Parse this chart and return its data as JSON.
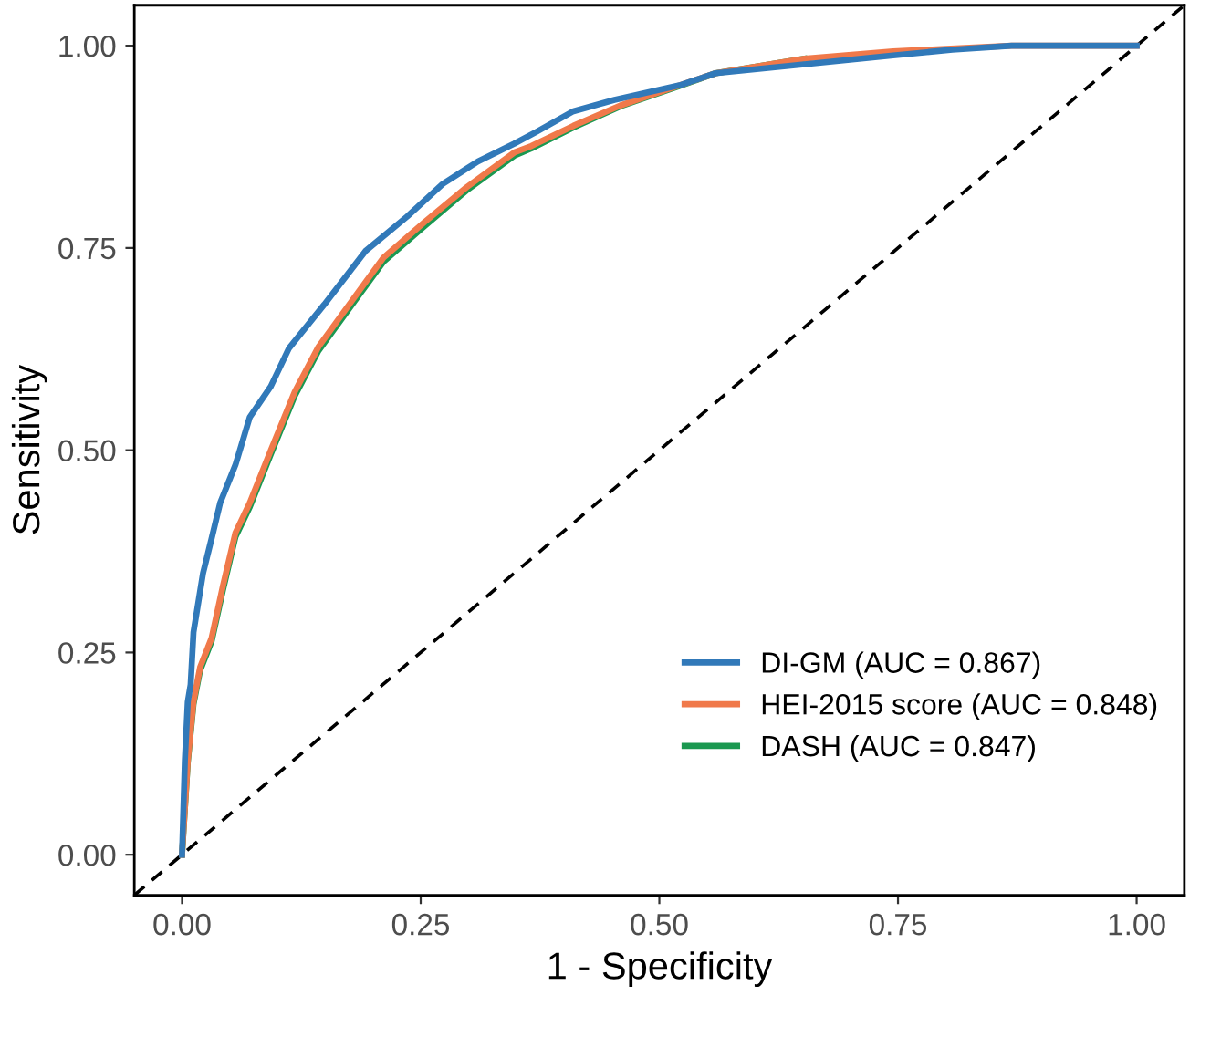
{
  "chart_data": {
    "type": "line",
    "xlabel": "1 - Specificity",
    "ylabel": "Sensitivity",
    "xlim": [
      -0.05,
      1.05
    ],
    "ylim": [
      -0.05,
      1.05
    ],
    "xticks": [
      {
        "value": 0,
        "label": "0.00"
      },
      {
        "value": 0.25,
        "label": "0.25"
      },
      {
        "value": 0.5,
        "label": "0.50"
      },
      {
        "value": 0.75,
        "label": "0.75"
      },
      {
        "value": 1,
        "label": "1.00"
      }
    ],
    "yticks": [
      {
        "value": 0,
        "label": "0.00"
      },
      {
        "value": 0.25,
        "label": "0.25"
      },
      {
        "value": 0.5,
        "label": "0.50"
      },
      {
        "value": 0.75,
        "label": "0.75"
      },
      {
        "value": 1,
        "label": "1.00"
      }
    ],
    "grid": false,
    "legend": "bottom right",
    "marker": "none",
    "series": [
      {
        "type": "line",
        "line_style": "dashed",
        "color": "#000000",
        "x": [
          -0.05,
          1.05
        ],
        "values": [
          -0.05,
          1.05
        ]
      },
      {
        "name": "DI-GM (AUC = 0.867)",
        "color": "#3179b9",
        "line_style": "solid",
        "x": [
          0,
          0.003,
          0.006,
          0.009,
          0.012,
          0.022,
          0.031,
          0.04,
          0.056,
          0.071,
          0.093,
          0.112,
          0.149,
          0.192,
          0.236,
          0.273,
          0.31,
          0.348,
          0.372,
          0.41,
          0.453,
          0.521,
          0.559,
          0.652,
          0.745,
          0.807,
          0.869,
          1
        ],
        "values": [
          0,
          0.117,
          0.189,
          0.21,
          0.275,
          0.348,
          0.391,
          0.435,
          0.482,
          0.541,
          0.579,
          0.626,
          0.68,
          0.746,
          0.789,
          0.829,
          0.857,
          0.879,
          0.894,
          0.919,
          0.933,
          0.951,
          0.966,
          0.977,
          0.988,
          0.995,
          1,
          1
        ]
      },
      {
        "name": "HEI-2015 score (AUC = 0.848)",
        "color": "#f0794a",
        "line_style": "solid",
        "x": [
          0,
          0.006,
          0.012,
          0.019,
          0.031,
          0.043,
          0.056,
          0.071,
          0.093,
          0.118,
          0.143,
          0.18,
          0.211,
          0.254,
          0.298,
          0.348,
          0.366,
          0.41,
          0.459,
          0.521,
          0.559,
          0.652,
          0.745,
          0.869,
          1
        ],
        "values": [
          0,
          0.116,
          0.189,
          0.232,
          0.268,
          0.333,
          0.398,
          0.435,
          0.5,
          0.572,
          0.628,
          0.688,
          0.738,
          0.782,
          0.825,
          0.868,
          0.876,
          0.901,
          0.926,
          0.951,
          0.966,
          0.984,
          0.993,
          1,
          1
        ]
      },
      {
        "name": "DASH (AUC = 0.847)",
        "color": "#1a9850",
        "line_style": "solid",
        "x": [
          0,
          0.006,
          0.012,
          0.019,
          0.031,
          0.043,
          0.056,
          0.071,
          0.093,
          0.118,
          0.143,
          0.18,
          0.211,
          0.254,
          0.298,
          0.348,
          0.366,
          0.41,
          0.459,
          0.521,
          0.559,
          0.652
        ],
        "values": [
          0,
          0.114,
          0.186,
          0.228,
          0.264,
          0.328,
          0.393,
          0.43,
          0.495,
          0.567,
          0.623,
          0.683,
          0.733,
          0.777,
          0.821,
          0.864,
          0.873,
          0.899,
          0.925,
          0.95,
          0.966,
          0.984
        ]
      }
    ]
  }
}
